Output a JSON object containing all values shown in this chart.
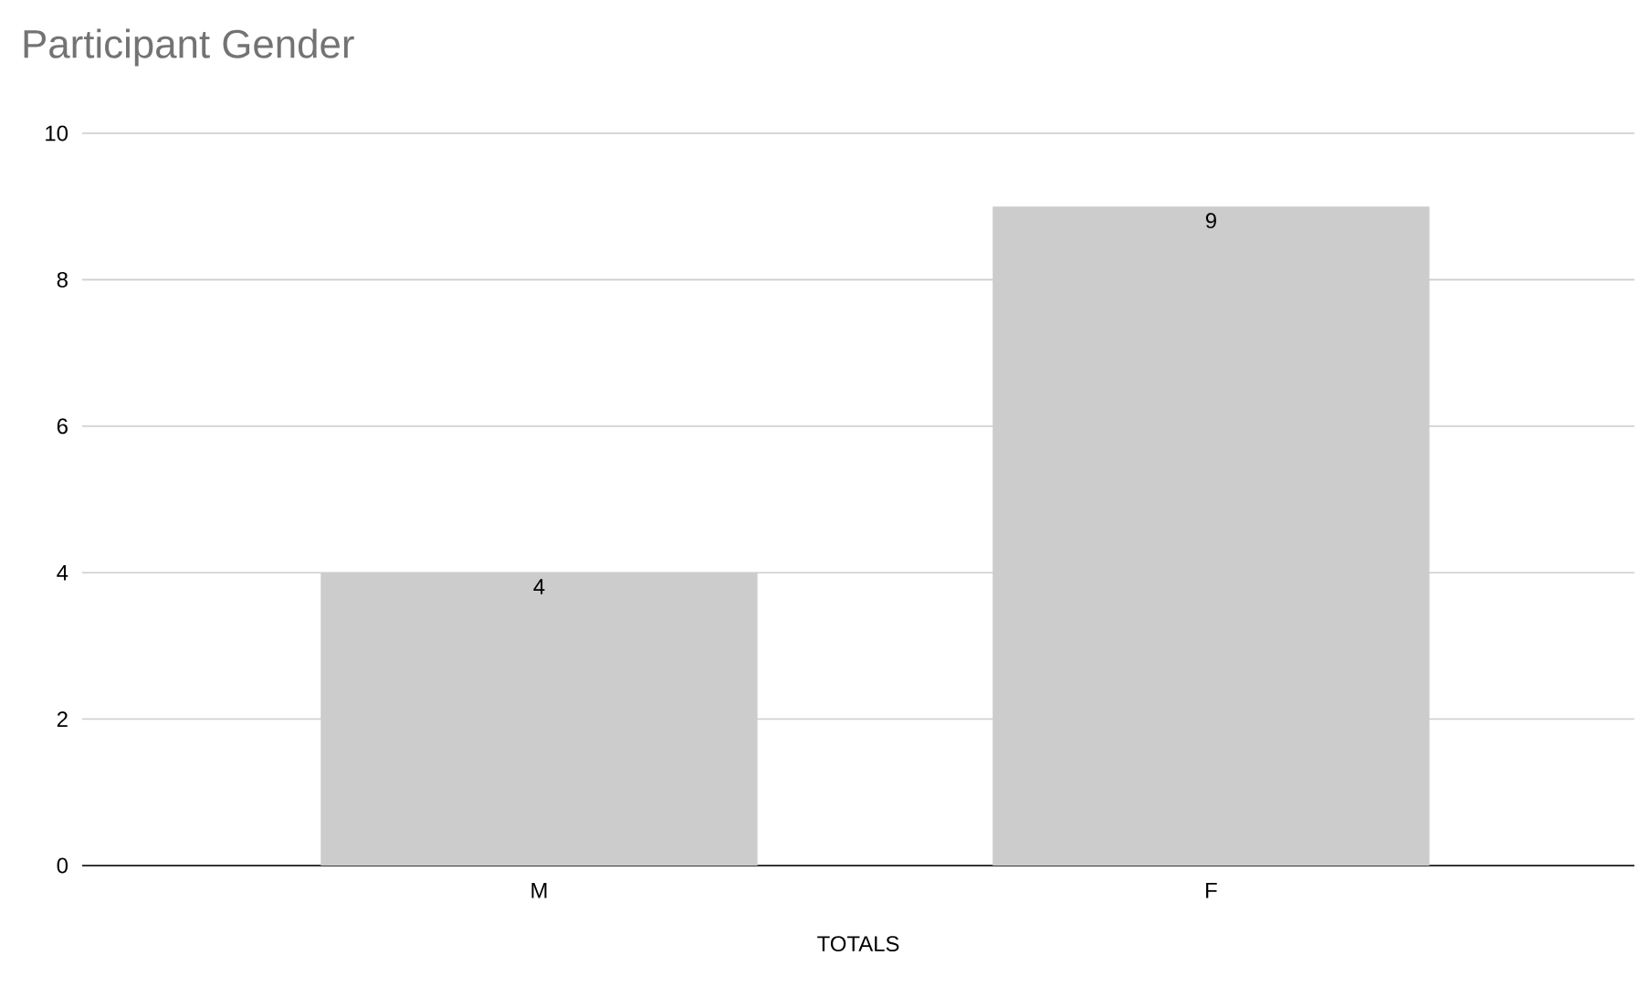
{
  "chart_data": {
    "type": "bar",
    "title": "Participant Gender",
    "xlabel": "TOTALS",
    "categories": [
      "M",
      "F"
    ],
    "values": [
      4,
      9
    ],
    "color": "#cccccc",
    "ylim": [
      0,
      10
    ],
    "yticks": [
      0,
      2,
      4,
      6,
      8,
      10
    ],
    "grid": "y",
    "data_labels": true
  }
}
